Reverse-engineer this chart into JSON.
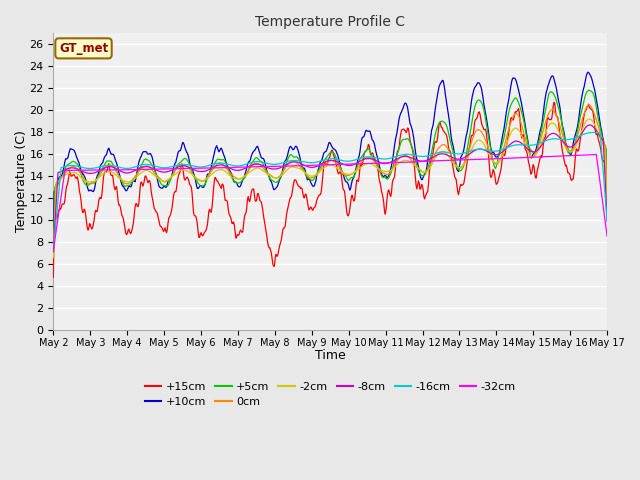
{
  "title": "Temperature Profile C",
  "xlabel": "Time",
  "ylabel": "Temperature (C)",
  "ylim": [
    0,
    27
  ],
  "yticks": [
    0,
    2,
    4,
    6,
    8,
    10,
    12,
    14,
    16,
    18,
    20,
    22,
    24,
    26
  ],
  "x_labels": [
    "May 2",
    "May 3",
    "May 4",
    "May 5",
    "May 6",
    "May 7",
    "May 8",
    "May 9",
    "May 10",
    "May 11",
    "May 12",
    "May 13",
    "May 14",
    "May 15",
    "May 16",
    "May 17"
  ],
  "annotation_text": "GT_met",
  "annotation_bg": "#ffffcc",
  "annotation_border": "#996600",
  "annotation_text_color": "#990000",
  "series": [
    {
      "label": "+15cm",
      "color": "#ff0000"
    },
    {
      "label": "+10cm",
      "color": "#0000cc"
    },
    {
      "label": "+5cm",
      "color": "#00cc00"
    },
    {
      "label": "0cm",
      "color": "#ff8800"
    },
    {
      "label": "-2cm",
      "color": "#cccc00"
    },
    {
      "label": "-8cm",
      "color": "#cc00cc"
    },
    {
      "label": "-16cm",
      "color": "#00cccc"
    },
    {
      "label": "-32cm",
      "color": "#ff00ff"
    }
  ],
  "bg_color": "#e8e8e8",
  "plot_bg": "#e8e8e8",
  "inner_bg": "#f0f0f0",
  "grid_color": "#ffffff",
  "n_days": 15,
  "pts_per_day": 48
}
